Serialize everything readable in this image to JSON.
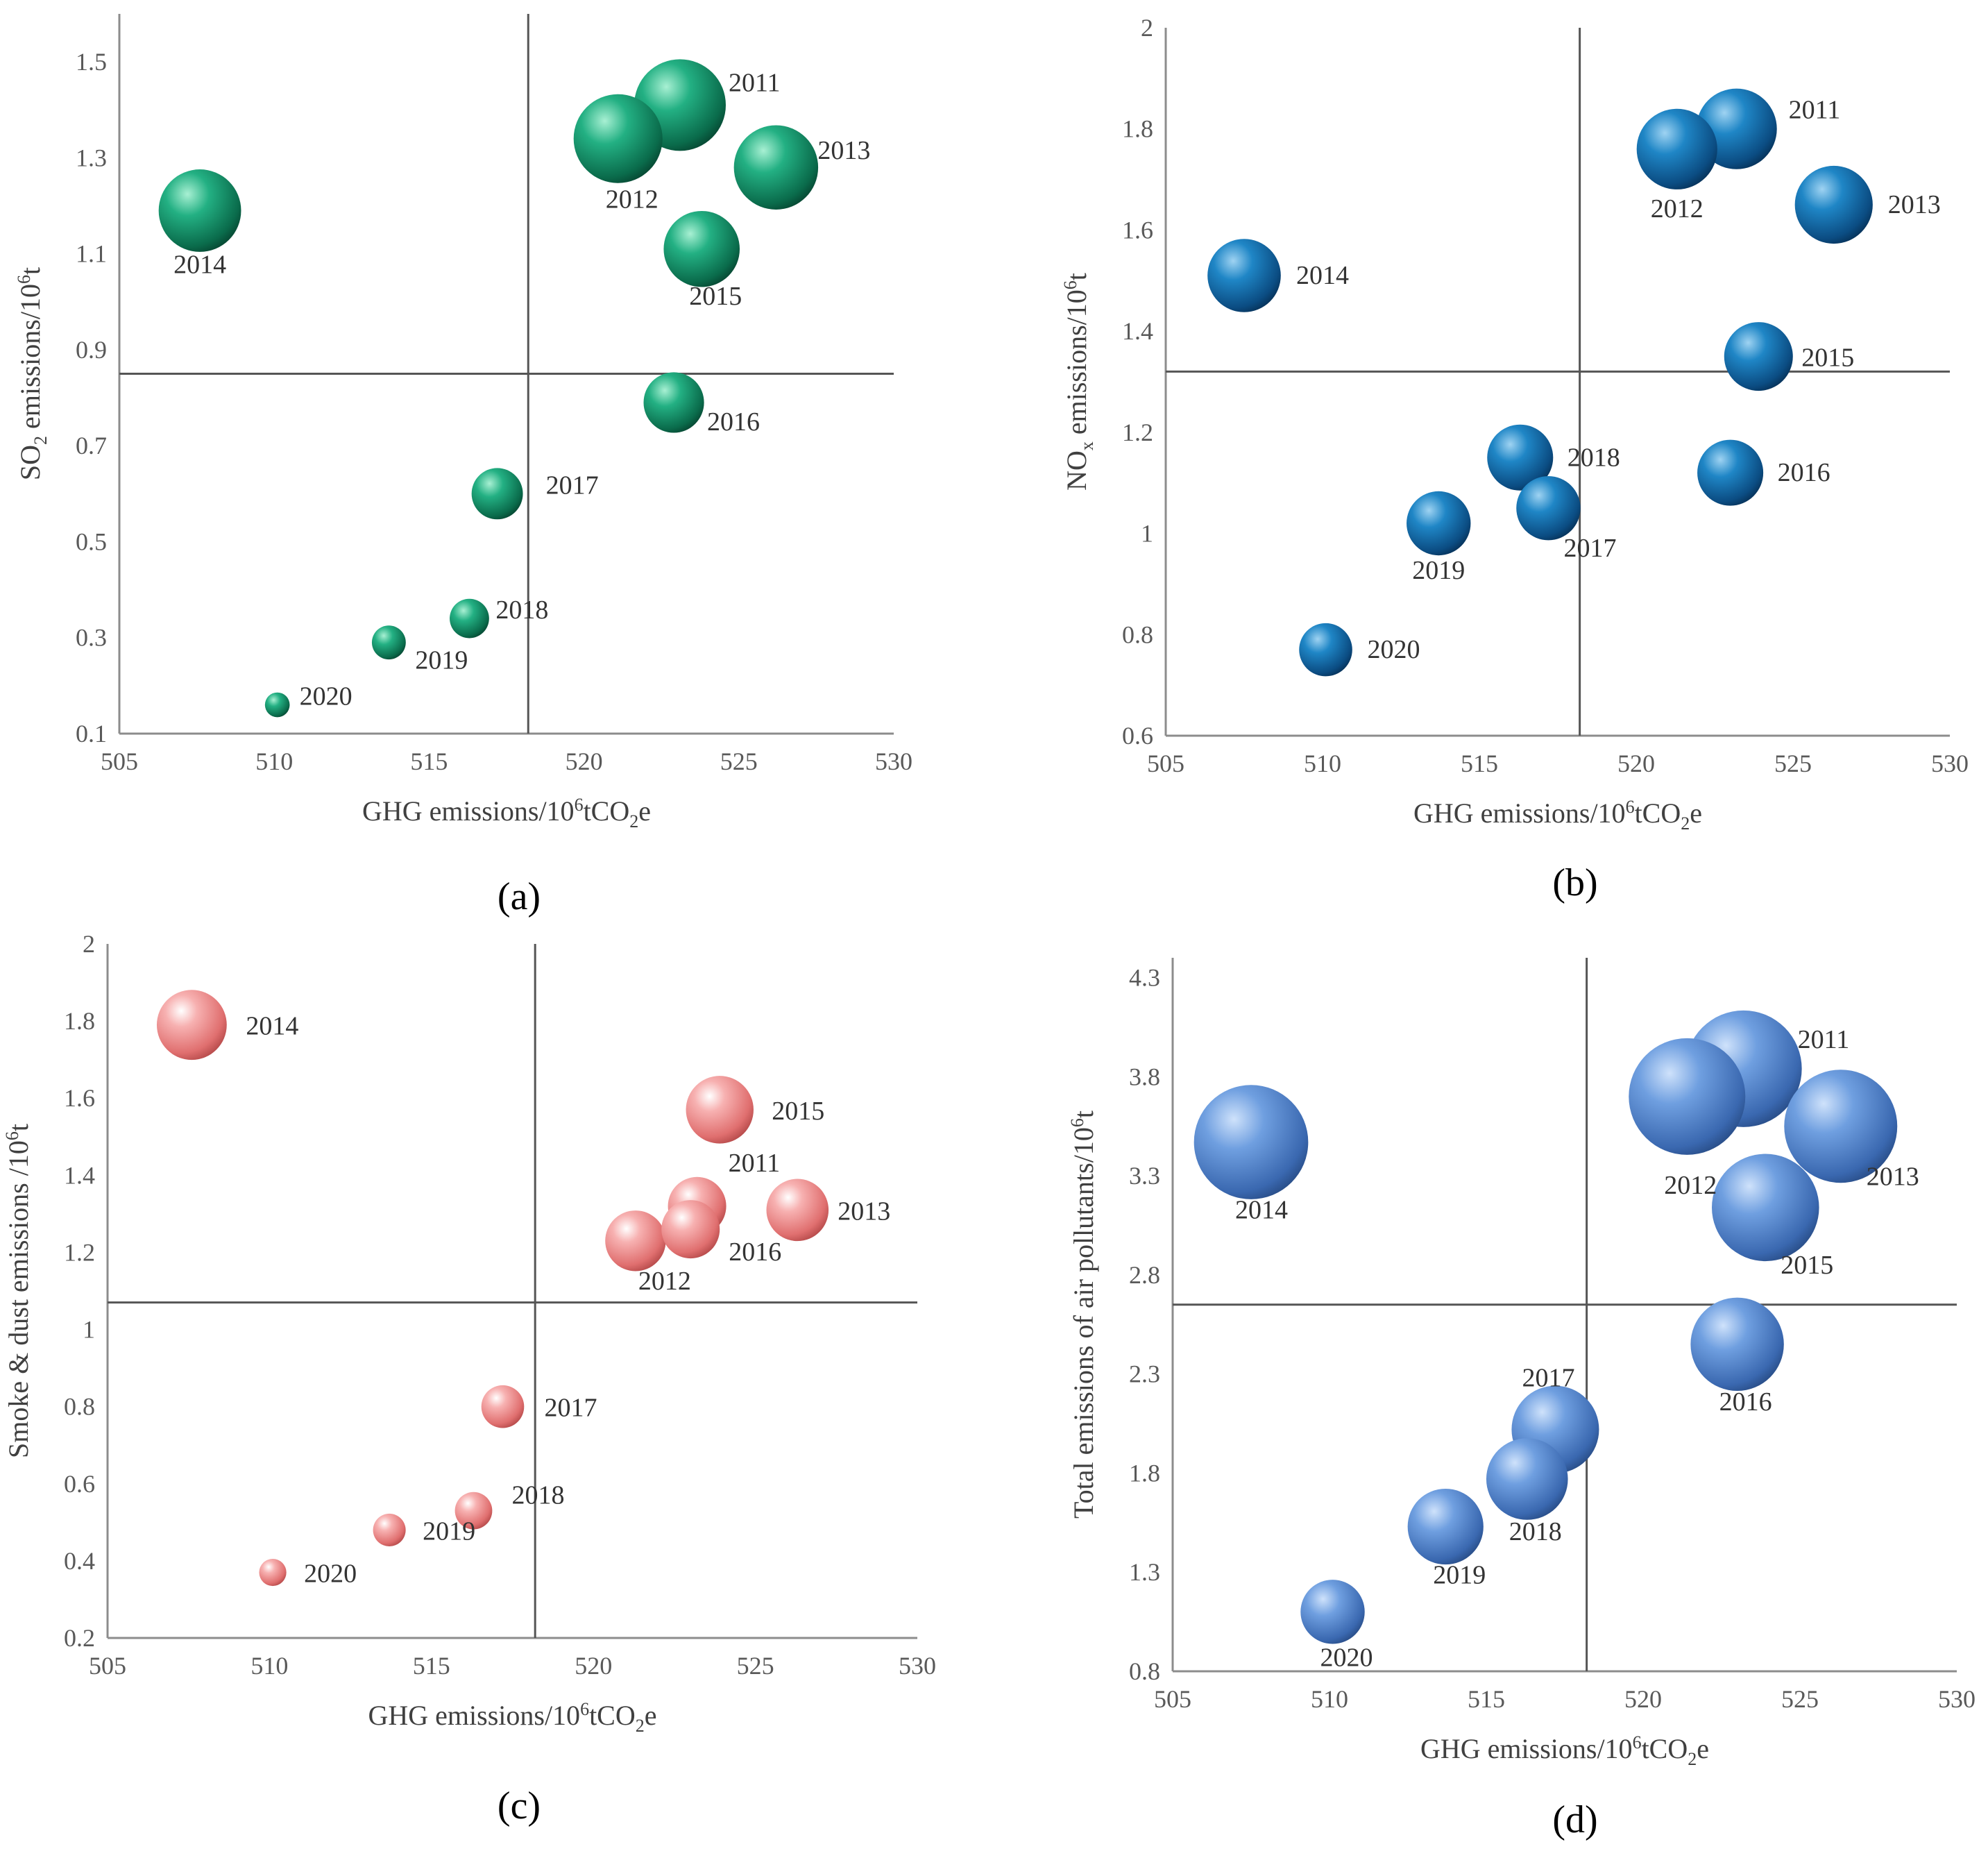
{
  "chart_data": [
    {
      "type": "scatter",
      "panel": "(a)",
      "xlabel": "GHG emissions/10^6tCO2e",
      "ylabel": "SO2 emissions/10^6t",
      "xlim": [
        505,
        530
      ],
      "ylim": [
        0.1,
        1.6
      ],
      "xticks": [
        "505",
        "510",
        "515",
        "520",
        "525",
        "530"
      ],
      "yticks": [
        "0.1",
        "0.3",
        "0.5",
        "0.7",
        "0.9",
        "1.1",
        "1.3",
        "1.5"
      ],
      "divider": {
        "x": 518.2,
        "y": 0.85
      },
      "color": "#1a9a72",
      "points": [
        {
          "year": "2011",
          "x": 523.1,
          "y": 1.41,
          "size": 1.0
        },
        {
          "year": "2012",
          "x": 521.1,
          "y": 1.34,
          "size": 0.97
        },
        {
          "year": "2013",
          "x": 526.2,
          "y": 1.28,
          "size": 0.92
        },
        {
          "year": "2014",
          "x": 507.6,
          "y": 1.19,
          "size": 0.9
        },
        {
          "year": "2015",
          "x": 523.8,
          "y": 1.11,
          "size": 0.83
        },
        {
          "year": "2016",
          "x": 522.9,
          "y": 0.79,
          "size": 0.66
        },
        {
          "year": "2017",
          "x": 517.2,
          "y": 0.6,
          "size": 0.56
        },
        {
          "year": "2018",
          "x": 516.3,
          "y": 0.34,
          "size": 0.43
        },
        {
          "year": "2019",
          "x": 513.7,
          "y": 0.29,
          "size": 0.37
        },
        {
          "year": "2020",
          "x": 510.1,
          "y": 0.16,
          "size": 0.27
        }
      ]
    },
    {
      "type": "scatter",
      "panel": "(b)",
      "xlabel": "GHG emissions/10^6tCO2e",
      "ylabel": "NOx emissions/10^6t",
      "xlim": [
        505,
        530
      ],
      "ylim": [
        0.6,
        2
      ],
      "xticks": [
        "505",
        "510",
        "515",
        "520",
        "525",
        "530"
      ],
      "yticks": [
        "0.6",
        "0.8",
        "1",
        "1.2",
        "1.4",
        "1.6",
        "1.8",
        "2"
      ],
      "divider": {
        "x": 518.2,
        "y": 1.32
      },
      "color": "#1a6fae",
      "points": [
        {
          "year": "2011",
          "x": 523.2,
          "y": 1.8,
          "size": 0.88
        },
        {
          "year": "2012",
          "x": 521.3,
          "y": 1.76,
          "size": 0.88
        },
        {
          "year": "2013",
          "x": 526.3,
          "y": 1.65,
          "size": 0.85
        },
        {
          "year": "2014",
          "x": 507.5,
          "y": 1.51,
          "size": 0.8
        },
        {
          "year": "2015",
          "x": 523.9,
          "y": 1.35,
          "size": 0.75
        },
        {
          "year": "2016",
          "x": 523.0,
          "y": 1.12,
          "size": 0.72
        },
        {
          "year": "2017",
          "x": 517.2,
          "y": 1.05,
          "size": 0.7
        },
        {
          "year": "2018",
          "x": 516.3,
          "y": 1.15,
          "size": 0.72
        },
        {
          "year": "2019",
          "x": 513.7,
          "y": 1.02,
          "size": 0.7
        },
        {
          "year": "2020",
          "x": 510.1,
          "y": 0.77,
          "size": 0.58
        }
      ]
    },
    {
      "type": "scatter",
      "panel": "(c)",
      "xlabel": "GHG emissions/10^6tCO2e",
      "ylabel": "Smoke & dust emissions /10^6t",
      "xlim": [
        505,
        530
      ],
      "ylim": [
        0.2,
        2
      ],
      "xticks": [
        "505",
        "510",
        "515",
        "520",
        "525",
        "530"
      ],
      "yticks": [
        "0.2",
        "0.4",
        "0.6",
        "0.8",
        "1",
        "1.2",
        "1.4",
        "1.6",
        "1.8",
        "2"
      ],
      "divider": {
        "x": 518.2,
        "y": 1.07
      },
      "color": "#ee8e8e",
      "points": [
        {
          "year": "2011",
          "x": 523.2,
          "y": 1.32,
          "size": 0.75
        },
        {
          "year": "2012",
          "x": 521.3,
          "y": 1.23,
          "size": 0.78
        },
        {
          "year": "2013",
          "x": 526.3,
          "y": 1.31,
          "size": 0.8
        },
        {
          "year": "2014",
          "x": 507.6,
          "y": 1.79,
          "size": 0.9
        },
        {
          "year": "2015",
          "x": 523.9,
          "y": 1.57,
          "size": 0.87
        },
        {
          "year": "2016",
          "x": 523.0,
          "y": 1.26,
          "size": 0.75
        },
        {
          "year": "2017",
          "x": 517.2,
          "y": 0.8,
          "size": 0.55
        },
        {
          "year": "2018",
          "x": 516.3,
          "y": 0.53,
          "size": 0.48
        },
        {
          "year": "2019",
          "x": 513.7,
          "y": 0.48,
          "size": 0.42
        },
        {
          "year": "2020",
          "x": 510.1,
          "y": 0.37,
          "size": 0.35
        }
      ]
    },
    {
      "type": "scatter",
      "panel": "(d)",
      "xlabel": "GHG emissions/10^6tCO2e",
      "ylabel": "Total emissions of air pollutants/10^6t",
      "xlim": [
        505,
        530
      ],
      "ylim": [
        0.8,
        4.4
      ],
      "xticks": [
        "505",
        "510",
        "515",
        "520",
        "525",
        "530"
      ],
      "yticks": [
        "0.8",
        "1.3",
        "1.8",
        "2.3",
        "2.8",
        "3.3",
        "3.8",
        "4.3"
      ],
      "divider": {
        "x": 518.2,
        "y": 2.65
      },
      "color": "#5a8fd6",
      "points": [
        {
          "year": "2011",
          "x": 523.2,
          "y": 3.84,
          "size": 1.0
        },
        {
          "year": "2012",
          "x": 521.4,
          "y": 3.7,
          "size": 1.0
        },
        {
          "year": "2013",
          "x": 526.3,
          "y": 3.55,
          "size": 0.97
        },
        {
          "year": "2014",
          "x": 507.5,
          "y": 3.47,
          "size": 0.98
        },
        {
          "year": "2015",
          "x": 523.9,
          "y": 3.14,
          "size": 0.92
        },
        {
          "year": "2016",
          "x": 523.0,
          "y": 2.45,
          "size": 0.8
        },
        {
          "year": "2017",
          "x": 517.2,
          "y": 2.02,
          "size": 0.75
        },
        {
          "year": "2018",
          "x": 516.3,
          "y": 1.77,
          "size": 0.7
        },
        {
          "year": "2019",
          "x": 513.7,
          "y": 1.53,
          "size": 0.65
        },
        {
          "year": "2020",
          "x": 510.1,
          "y": 1.1,
          "size": 0.55
        }
      ]
    }
  ]
}
